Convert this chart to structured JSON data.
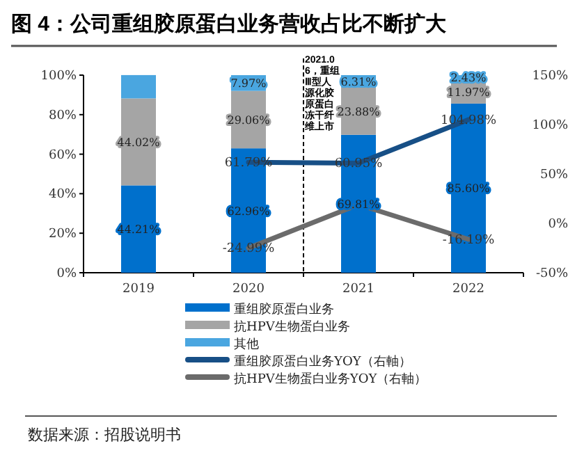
{
  "chart_data": {
    "type": "bar",
    "stacked": true,
    "title": "图 4：公司重组胶原蛋白业务营收占比不断扩大",
    "categories": [
      "2019",
      "2020",
      "2021",
      "2022"
    ],
    "series": [
      {
        "name": "重组胶原蛋白业务",
        "color": "#0070cc",
        "values": [
          44.21,
          62.96,
          69.81,
          85.6
        ],
        "value_labels": [
          "44.21%",
          "62.96%",
          "69.81%",
          "85.60%"
        ]
      },
      {
        "name": "抗HPV生物蛋白业务",
        "color": "#a5a5a5",
        "values": [
          44.02,
          29.06,
          23.88,
          11.97
        ],
        "value_labels": [
          "44.02%",
          "29.06%",
          "23.88%",
          "11.97%"
        ]
      },
      {
        "name": "其他",
        "color": "#4aa6e0",
        "values": [
          11.8,
          7.97,
          6.31,
          2.43
        ],
        "value_labels": [
          null,
          "7.97%",
          "6.31%",
          "2.43%"
        ]
      },
      {
        "name": "重组胶原蛋白业务YOY（右軸）",
        "type": "line",
        "axis": "y2",
        "color": "#174f86",
        "values": [
          null,
          61.79,
          60.95,
          104.98
        ],
        "value_labels": [
          null,
          "61.79%",
          "60.95%",
          "104.98%"
        ]
      },
      {
        "name": "抗HPV生物蛋白业务YOY（右軸）",
        "type": "line",
        "axis": "y2",
        "color": "#6b6b6b",
        "values": [
          null,
          -24.99,
          19,
          -16.19
        ],
        "value_labels": [
          null,
          "-24.99%",
          null,
          "-16.19%"
        ]
      }
    ],
    "ylim": [
      0,
      100
    ],
    "yticks": [
      {
        "value": 0,
        "label": "0%"
      },
      {
        "value": 20,
        "label": "20%"
      },
      {
        "value": 40,
        "label": "40%"
      },
      {
        "value": 60,
        "label": "60%"
      },
      {
        "value": 80,
        "label": "80%"
      },
      {
        "value": 100,
        "label": "100%"
      }
    ],
    "y2lim": [
      -50,
      150
    ],
    "y2ticks": [
      {
        "value": -50,
        "label": "-50%"
      },
      {
        "value": 0,
        "label": "0%"
      },
      {
        "value": 50,
        "label": "50%"
      },
      {
        "value": 100,
        "label": "100%"
      },
      {
        "value": 150,
        "label": "150%"
      }
    ],
    "legend": "bottom",
    "grid": false,
    "annotations": [
      {
        "text": "2021.06，重组Ⅲ型人源化胶原蛋白冻干纤维上市",
        "x": "2021"
      },
      "数据来源：招股说明书"
    ]
  }
}
